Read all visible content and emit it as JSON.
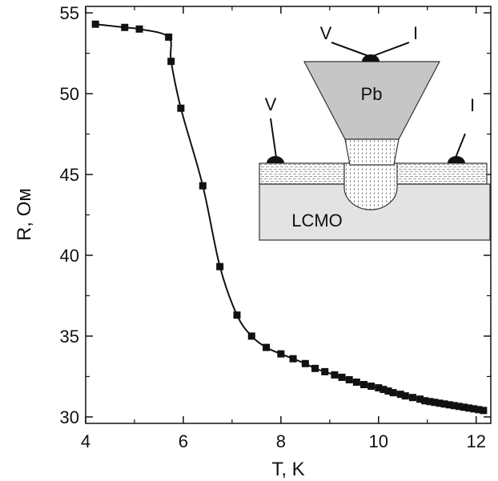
{
  "chart_data": {
    "type": "scatter",
    "xlabel": "T, K",
    "ylabel": "R, Ом",
    "xlim": [
      4,
      12.3
    ],
    "ylim": [
      29.6,
      55.4
    ],
    "x_ticks": [
      "4",
      "6",
      "8",
      "10",
      "12"
    ],
    "y_ticks": [
      "30",
      "35",
      "40",
      "45",
      "50",
      "55"
    ],
    "grid": false,
    "series": [
      {
        "marker": "square",
        "color": "#111111",
        "x": [
          4.2,
          4.8,
          5.1,
          5.7,
          5.75,
          5.95,
          6.4,
          6.75,
          7.1,
          7.4,
          7.7,
          8.0,
          8.25,
          8.5,
          8.7,
          8.9,
          9.1,
          9.25,
          9.4,
          9.55,
          9.7,
          9.85,
          10.0,
          10.1,
          10.2,
          10.3,
          10.45,
          10.55,
          10.7,
          10.85,
          10.95,
          11.05,
          11.15,
          11.25,
          11.35,
          11.45,
          11.55,
          11.65,
          11.75,
          11.85,
          11.95,
          12.05,
          12.15
        ],
        "y": [
          54.3,
          54.1,
          54.0,
          53.5,
          52.0,
          49.1,
          44.3,
          39.3,
          36.3,
          35.0,
          34.3,
          33.9,
          33.6,
          33.3,
          33.0,
          32.8,
          32.6,
          32.45,
          32.3,
          32.15,
          32.0,
          31.9,
          31.8,
          31.7,
          31.6,
          31.5,
          31.4,
          31.3,
          31.2,
          31.1,
          31.0,
          30.95,
          30.9,
          30.85,
          30.8,
          30.75,
          30.7,
          30.65,
          30.6,
          30.55,
          30.5,
          30.45,
          30.4
        ]
      }
    ]
  },
  "inset": {
    "tip_label": "Pb",
    "film_label": "LCMO",
    "left_probe_label": "V",
    "right_probe_label": "I",
    "tip_probe_v_label": "V",
    "tip_probe_i_label": "I"
  }
}
